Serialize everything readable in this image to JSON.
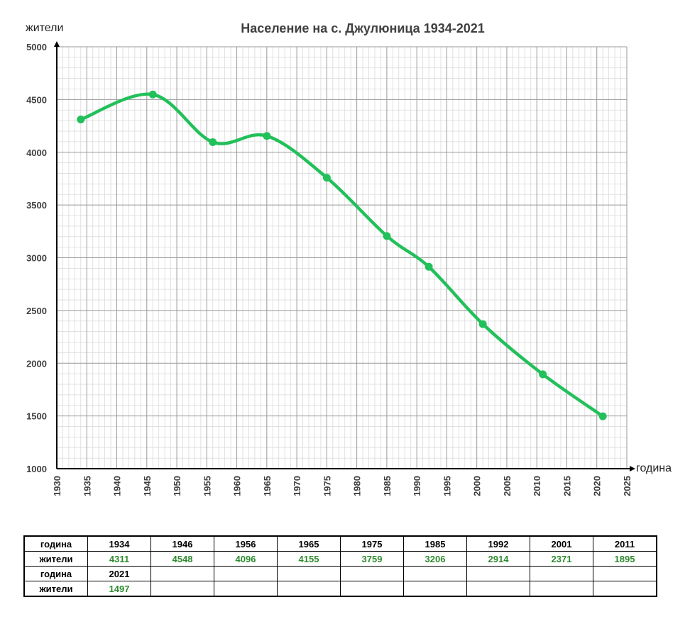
{
  "chart_data": {
    "type": "line",
    "title": "Население на с. Джулюница 1934-2021",
    "xlabel": "година",
    "ylabel": "жители",
    "xlim": [
      1930,
      2025
    ],
    "ylim": [
      1000,
      5000
    ],
    "x_ticks": [
      1930,
      1935,
      1940,
      1945,
      1950,
      1955,
      1960,
      1965,
      1970,
      1975,
      1980,
      1985,
      1990,
      1995,
      2000,
      2005,
      2010,
      2015,
      2020,
      2025
    ],
    "y_ticks": [
      1000,
      1500,
      2000,
      2500,
      3000,
      3500,
      4000,
      4500,
      5000
    ],
    "grid": true,
    "line_color": "#22c05a",
    "series": [
      {
        "x": [
          1934,
          1946,
          1956,
          1965,
          1975,
          1985,
          1992,
          2001,
          2011,
          2021
        ],
        "values": [
          4311,
          4548,
          4096,
          4155,
          3759,
          3206,
          2914,
          2371,
          1895,
          1497
        ]
      }
    ]
  },
  "table": {
    "row_labels": {
      "year": "година",
      "population": "жители"
    },
    "row1_years": [
      "1934",
      "1946",
      "1956",
      "1965",
      "1975",
      "1985",
      "1992",
      "2001",
      "2011"
    ],
    "row1_values": [
      "4311",
      "4548",
      "4096",
      "4155",
      "3759",
      "3206",
      "2914",
      "2371",
      "1895"
    ],
    "row2_years": [
      "2021"
    ],
    "row2_values": [
      "1497"
    ]
  }
}
